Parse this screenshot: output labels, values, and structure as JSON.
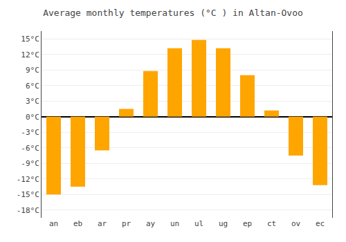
{
  "chart_data": {
    "type": "bar",
    "title": "Average monthly temperatures (°C ) in Altan-Ovoo",
    "categories": [
      "an",
      "eb",
      "ar",
      "pr",
      "ay",
      "un",
      "ul",
      "ug",
      "ep",
      "ct",
      "ov",
      "ec"
    ],
    "values": [
      -15,
      -13.5,
      -6.5,
      1.5,
      8.8,
      13.2,
      14.8,
      13.2,
      8.0,
      1.2,
      -7.5,
      -13.2
    ],
    "color": "#FFA500",
    "ylim": [
      -19.5,
      16.5
    ],
    "yticks": [
      {
        "value": -18,
        "label": "-18°C"
      },
      {
        "value": -15,
        "label": "-15°C"
      },
      {
        "value": -12,
        "label": "-12°C"
      },
      {
        "value": -9,
        "label": "-9°C"
      },
      {
        "value": -6,
        "label": "-6°C"
      },
      {
        "value": -3,
        "label": "-3°C"
      },
      {
        "value": 0,
        "label": "0°C"
      },
      {
        "value": 3,
        "label": "3°C"
      },
      {
        "value": 6,
        "label": "6°C"
      },
      {
        "value": 9,
        "label": "9°C"
      },
      {
        "value": 12,
        "label": "12°C"
      },
      {
        "value": 15,
        "label": "15°C"
      }
    ],
    "grid": true
  }
}
